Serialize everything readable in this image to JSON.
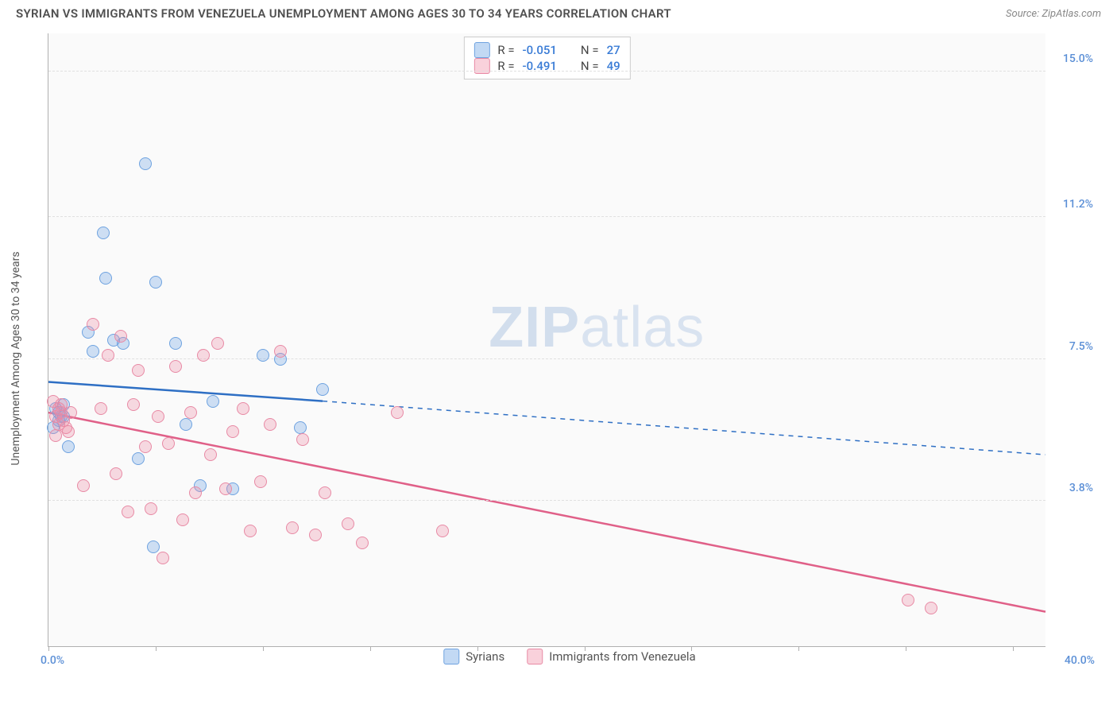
{
  "header": {
    "title": "SYRIAN VS IMMIGRANTS FROM VENEZUELA UNEMPLOYMENT AMONG AGES 30 TO 34 YEARS CORRELATION CHART",
    "source_prefix": "Source: ",
    "source_name": "ZipAtlas.com"
  },
  "chart": {
    "type": "scatter",
    "y_axis_label": "Unemployment Among Ages 30 to 34 years",
    "background_color": "#fafafa",
    "grid_color": "#e0e0e0",
    "axis_color": "#b0b0b0",
    "xlim": [
      0,
      40
    ],
    "ylim": [
      0,
      16
    ],
    "x_ticks": [
      0,
      4.3,
      8.6,
      12.9,
      17.2,
      21.5,
      25.8,
      30.1,
      34.4,
      38.7
    ],
    "x_origin_label": "0.0%",
    "x_max_label": "40.0%",
    "y_gridlines": [
      3.8,
      7.5,
      11.2,
      15.0
    ],
    "y_tick_labels": [
      "3.8%",
      "7.5%",
      "11.2%",
      "15.0%"
    ],
    "watermark": {
      "bold": "ZIP",
      "rest": "atlas"
    },
    "correlation_box": {
      "rows": [
        {
          "swatch": "blue",
          "r_label": "R =",
          "r_value": "-0.051",
          "n_label": "N =",
          "n_value": "27"
        },
        {
          "swatch": "pink",
          "r_label": "R =",
          "r_value": "-0.491",
          "n_label": "N =",
          "n_value": "49"
        }
      ]
    },
    "legend": {
      "items": [
        {
          "swatch": "blue",
          "label": "Syrians"
        },
        {
          "swatch": "pink",
          "label": "Immigrants from Venezuela"
        }
      ]
    },
    "series": [
      {
        "name": "Syrians",
        "color_fill": "rgba(120,170,230,0.35)",
        "color_stroke": "#6fa3e0",
        "class": "blue",
        "trend_solid": {
          "x1": 0,
          "y1": 6.9,
          "x2": 11,
          "y2": 6.4
        },
        "trend_dashed": {
          "x1": 11,
          "y1": 6.4,
          "x2": 40,
          "y2": 5.0
        },
        "trend_color": "#2e6fc4",
        "points": [
          [
            0.3,
            6.2
          ],
          [
            0.5,
            6.0
          ],
          [
            0.4,
            5.9
          ],
          [
            0.6,
            6.3
          ],
          [
            0.2,
            5.7
          ],
          [
            0.8,
            5.2
          ],
          [
            0.4,
            6.1
          ],
          [
            0.6,
            6.0
          ],
          [
            1.6,
            8.2
          ],
          [
            1.8,
            7.7
          ],
          [
            2.2,
            10.8
          ],
          [
            2.3,
            9.6
          ],
          [
            2.6,
            8.0
          ],
          [
            3.0,
            7.9
          ],
          [
            3.6,
            4.9
          ],
          [
            3.9,
            12.6
          ],
          [
            4.2,
            2.6
          ],
          [
            4.3,
            9.5
          ],
          [
            5.1,
            7.9
          ],
          [
            5.5,
            5.8
          ],
          [
            6.1,
            4.2
          ],
          [
            6.6,
            6.4
          ],
          [
            7.4,
            4.1
          ],
          [
            8.6,
            7.6
          ],
          [
            9.3,
            7.5
          ],
          [
            10.1,
            5.7
          ],
          [
            11.0,
            6.7
          ]
        ]
      },
      {
        "name": "Immigrants from Venezuela",
        "color_fill": "rgba(240,140,165,0.30)",
        "color_stroke": "#e88aa5",
        "class": "pink",
        "trend_solid": {
          "x1": 0,
          "y1": 6.1,
          "x2": 40,
          "y2": 0.9
        },
        "trend_dashed": null,
        "trend_color": "#e06088",
        "points": [
          [
            0.3,
            6.0
          ],
          [
            0.4,
            5.8
          ],
          [
            0.5,
            6.1
          ],
          [
            0.6,
            5.9
          ],
          [
            0.3,
            5.5
          ],
          [
            0.7,
            5.7
          ],
          [
            0.5,
            6.3
          ],
          [
            0.8,
            5.6
          ],
          [
            0.4,
            6.2
          ],
          [
            1.4,
            4.2
          ],
          [
            1.8,
            8.4
          ],
          [
            2.1,
            6.2
          ],
          [
            2.4,
            7.6
          ],
          [
            2.7,
            4.5
          ],
          [
            2.9,
            8.1
          ],
          [
            3.2,
            3.5
          ],
          [
            3.4,
            6.3
          ],
          [
            3.6,
            7.2
          ],
          [
            3.9,
            5.2
          ],
          [
            4.1,
            3.6
          ],
          [
            4.4,
            6.0
          ],
          [
            4.6,
            2.3
          ],
          [
            4.8,
            5.3
          ],
          [
            5.1,
            7.3
          ],
          [
            5.4,
            3.3
          ],
          [
            5.7,
            6.1
          ],
          [
            5.9,
            4.0
          ],
          [
            6.2,
            7.6
          ],
          [
            6.5,
            5.0
          ],
          [
            6.8,
            7.9
          ],
          [
            7.1,
            4.1
          ],
          [
            7.4,
            5.6
          ],
          [
            7.8,
            6.2
          ],
          [
            8.1,
            3.0
          ],
          [
            8.5,
            4.3
          ],
          [
            8.9,
            5.8
          ],
          [
            9.3,
            7.7
          ],
          [
            9.8,
            3.1
          ],
          [
            10.2,
            5.4
          ],
          [
            10.7,
            2.9
          ],
          [
            11.1,
            4.0
          ],
          [
            12.0,
            3.2
          ],
          [
            12.6,
            2.7
          ],
          [
            14.0,
            6.1
          ],
          [
            15.8,
            3.0
          ],
          [
            34.5,
            1.2
          ],
          [
            35.4,
            1.0
          ],
          [
            0.2,
            6.4
          ],
          [
            0.9,
            6.1
          ]
        ]
      }
    ]
  }
}
